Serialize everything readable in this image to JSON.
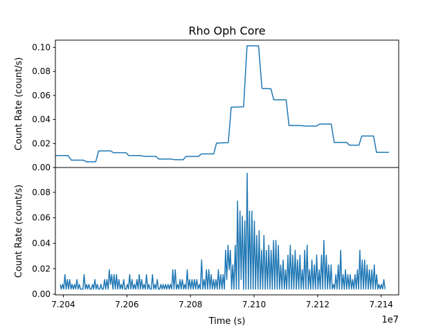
{
  "chart_data": [
    {
      "type": "line",
      "title": "Rho Oph Core",
      "ylabel": "Count Rate (count/s)",
      "xlabel": "",
      "xlim": [
        7.20375,
        7.21455
      ],
      "ylim": [
        0.0,
        0.106
      ],
      "yticks": [
        "0.00",
        "0.02",
        "0.04",
        "0.06",
        "0.08",
        "0.10"
      ],
      "ytick_values": [
        0,
        0.02,
        0.04,
        0.06,
        0.08,
        0.1
      ],
      "color": "#1f77b4",
      "x": [
        7.20376,
        7.20415,
        7.20425,
        7.20463,
        7.20473,
        7.20502,
        7.20511,
        7.20548,
        7.20558,
        7.20597,
        7.20606,
        7.20644,
        7.20654,
        7.20691,
        7.207,
        7.20739,
        7.20749,
        7.20777,
        7.20786,
        7.20825,
        7.20834,
        7.20873,
        7.20882,
        7.20919,
        7.20928,
        7.20967,
        7.20978,
        7.21014,
        7.21025,
        7.21053,
        7.21062,
        7.21101,
        7.2111,
        7.21149,
        7.21158,
        7.21197,
        7.21206,
        7.21243,
        7.21252,
        7.21291,
        7.213,
        7.2133,
        7.21339,
        7.21376,
        7.21385,
        7.21424
      ],
      "y": [
        0.0099,
        0.0099,
        0.0061,
        0.0061,
        0.0048,
        0.0048,
        0.0138,
        0.0138,
        0.0123,
        0.0123,
        0.0099,
        0.0099,
        0.0093,
        0.0093,
        0.0071,
        0.0071,
        0.0065,
        0.0065,
        0.0092,
        0.0092,
        0.0113,
        0.0113,
        0.0203,
        0.0207,
        0.0502,
        0.0506,
        0.1013,
        0.1013,
        0.0659,
        0.0655,
        0.0563,
        0.0563,
        0.0349,
        0.0349,
        0.0345,
        0.0345,
        0.0362,
        0.0362,
        0.0209,
        0.0209,
        0.0186,
        0.0186,
        0.0262,
        0.0262,
        0.0126,
        0.0126
      ]
    },
    {
      "type": "line",
      "title": "",
      "ylabel": "Count Rate (count/s)",
      "xlabel": "Time (s)",
      "x_offset_label": "1e7",
      "xlim": [
        7.20375,
        7.21455
      ],
      "ylim": [
        -0.0005,
        0.0995
      ],
      "yticks": [
        "0.00",
        "0.02",
        "0.04",
        "0.06",
        "0.08"
      ],
      "ytick_values": [
        0,
        0.02,
        0.04,
        0.06,
        0.08
      ],
      "xticks": [
        "7.204",
        "7.206",
        "7.208",
        "7.210",
        "7.212",
        "7.214"
      ],
      "xtick_values": [
        7.204,
        7.206,
        7.208,
        7.21,
        7.212,
        7.214
      ],
      "color": "#1f77b4",
      "x_start": 7.2039,
      "x_end": 7.21412,
      "y": [
        0.0077,
        0.004,
        0.0077,
        0.004,
        0.0154,
        0.004,
        0.0115,
        0.004,
        0.0115,
        0.004,
        0.0077,
        0.004,
        0.0077,
        0.004,
        0.0115,
        0.004,
        0.0077,
        0.004,
        0.004,
        0.004,
        0.0154,
        0.004,
        0.0077,
        0.004,
        0.0077,
        0.004,
        0.004,
        0.0077,
        0.004,
        0.0115,
        0.004,
        0.0077,
        0.004,
        0.004,
        0.0077,
        0.004,
        0.004,
        0.0115,
        0.004,
        0.0115,
        0.004,
        0.0192,
        0.0077,
        0.0154,
        0.004,
        0.0154,
        0.004,
        0.0154,
        0.004,
        0.0115,
        0.004,
        0.0077,
        0.004,
        0.0115,
        0.004,
        0.004,
        0.0077,
        0.004,
        0.0154,
        0.004,
        0.0115,
        0.004,
        0.0077,
        0.004,
        0.0115,
        0.004,
        0.0154,
        0.004,
        0.0115,
        0.004,
        0.0077,
        0.004,
        0.0154,
        0.004,
        0.0077,
        0.004,
        0.004,
        0.0154,
        0.004,
        0.0077,
        0.004,
        0.0115,
        0.004,
        0.004,
        0.0077,
        0.004,
        0.0077,
        0.004,
        0.0077,
        0.004,
        0.0077,
        0.004,
        0.0077,
        0.004,
        0.0192,
        0.004,
        0.0192,
        0.004,
        0.0077,
        0.004,
        0.0115,
        0.004,
        0.0115,
        0.004,
        0.0077,
        0.004,
        0.0192,
        0.004,
        0.0115,
        0.004,
        0.0115,
        0.004,
        0.0115,
        0.004,
        0.0115,
        0.004,
        0.0077,
        0.004,
        0.0269,
        0.004,
        0.0115,
        0.004,
        0.0192,
        0.004,
        0.0192,
        0.004,
        0.0154,
        0.004,
        0.0115,
        0.004,
        0.0115,
        0.004,
        0.0192,
        0.004,
        0.0154,
        0.004,
        0.0154,
        0.004,
        0.0345,
        0.0115,
        0.0384,
        0.0192,
        0.0345,
        0.004,
        0.023,
        0.004,
        0.0384,
        0.004,
        0.073,
        0.004,
        0.0653,
        0.0115,
        0.0614,
        0.004,
        0.0576,
        0.004,
        0.095,
        0.004,
        0.0653,
        0.004,
        0.0653,
        0.004,
        0.0576,
        0.004,
        0.0461,
        0.004,
        0.0499,
        0.004,
        0.0345,
        0.004,
        0.0461,
        0.004,
        0.0345,
        0.004,
        0.0384,
        0.004,
        0.0345,
        0.004,
        0.0422,
        0.004,
        0.0422,
        0.004,
        0.0384,
        0.004,
        0.023,
        0.004,
        0.0269,
        0.004,
        0.0192,
        0.004,
        0.0307,
        0.004,
        0.0384,
        0.004,
        0.0307,
        0.004,
        0.0345,
        0.004,
        0.0269,
        0.004,
        0.0307,
        0.004,
        0.0192,
        0.004,
        0.0345,
        0.004,
        0.0384,
        0.004,
        0.0192,
        0.004,
        0.0269,
        0.004,
        0.023,
        0.004,
        0.0307,
        0.004,
        0.0192,
        0.004,
        0.0307,
        0.004,
        0.0422,
        0.004,
        0.0307,
        0.004,
        0.023,
        0.004,
        0.023,
        0.004,
        0.0077,
        0.004,
        0.0154,
        0.004,
        0.023,
        0.004,
        0.0345,
        0.004,
        0.0154,
        0.004,
        0.0192,
        0.004,
        0.0154,
        0.004,
        0.0154,
        0.004,
        0.0115,
        0.004,
        0.0154,
        0.004,
        0.0192,
        0.004,
        0.0345,
        0.004,
        0.0269,
        0.004,
        0.0269,
        0.004,
        0.023,
        0.004,
        0.0192,
        0.004,
        0.0192,
        0.004,
        0.023,
        0.004,
        0.0154,
        0.004,
        0.0077,
        0.004,
        0.0077,
        0.004,
        0.0115,
        0.004
      ]
    }
  ]
}
